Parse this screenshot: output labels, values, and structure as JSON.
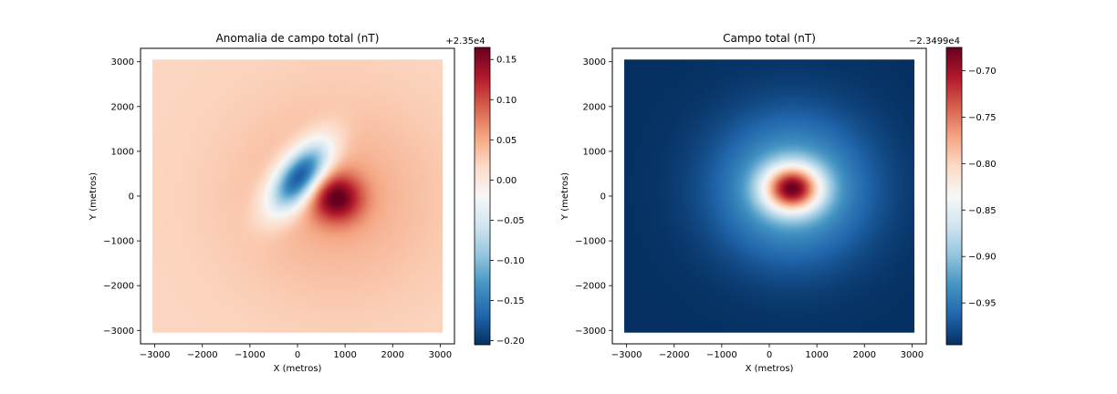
{
  "chart_data": [
    {
      "type": "heatmap",
      "title": "Anomalia de campo total (nT)",
      "xlabel": "X (metros)",
      "ylabel": "Y (metros)",
      "xlim": [
        -3300,
        3300
      ],
      "ylim": [
        -3300,
        3300
      ],
      "data_extent": [
        -3050,
        3050,
        -3050,
        3050
      ],
      "x_ticks": [
        -3000,
        -2000,
        -1000,
        0,
        1000,
        2000,
        3000
      ],
      "y_ticks": [
        -3000,
        -2000,
        -1000,
        0,
        1000,
        2000,
        3000
      ],
      "x_tick_labels": [
        "−3000",
        "−2000",
        "−1000",
        "0",
        "1000",
        "2000",
        "3000"
      ],
      "y_tick_labels": [
        "−3000",
        "−2000",
        "−1000",
        "0",
        "1000",
        "2000",
        "3000"
      ],
      "colormap": "RdBu_r",
      "colorbar": {
        "offset_label": "+2.35e4",
        "range": [
          -0.205,
          0.165
        ],
        "ticks": [
          -0.2,
          -0.15,
          -0.1,
          -0.05,
          0.0,
          0.05,
          0.1,
          0.15
        ],
        "tick_labels": [
          "−0.20",
          "−0.15",
          "−0.10",
          "−0.05",
          "0.00",
          "0.05",
          "0.10",
          "0.15"
        ]
      },
      "features": [
        {
          "kind": "min",
          "x": 50,
          "y": 430,
          "value": -0.205
        },
        {
          "kind": "max",
          "x": 820,
          "y": -40,
          "value": 0.165
        }
      ],
      "background_value": 0.02
    },
    {
      "type": "heatmap",
      "title": "Campo total (nT)",
      "xlabel": "X (metros)",
      "ylabel": "Y (metros)",
      "xlim": [
        -3300,
        3300
      ],
      "ylim": [
        -3300,
        3300
      ],
      "data_extent": [
        -3050,
        3050,
        -3050,
        3050
      ],
      "x_ticks": [
        -3000,
        -2000,
        -1000,
        0,
        1000,
        2000,
        3000
      ],
      "y_ticks": [
        -3000,
        -2000,
        -1000,
        0,
        1000,
        2000,
        3000
      ],
      "x_tick_labels": [
        "−3000",
        "−2000",
        "−1000",
        "0",
        "1000",
        "2000",
        "3000"
      ],
      "y_tick_labels": [
        "−3000",
        "−2000",
        "−1000",
        "0",
        "1000",
        "2000",
        "3000"
      ],
      "colormap": "RdBu_r",
      "colorbar": {
        "offset_label": "−2.3499e4",
        "range": [
          -0.995,
          -0.675
        ],
        "ticks": [
          -0.95,
          -0.9,
          -0.85,
          -0.8,
          -0.75,
          -0.7
        ],
        "tick_labels": [
          "−0.95",
          "−0.90",
          "−0.85",
          "−0.80",
          "−0.75",
          "−0.70"
        ]
      },
      "features": [
        {
          "kind": "max",
          "x": 480,
          "y": 170,
          "value": -0.675
        }
      ],
      "background_value": -0.995
    }
  ]
}
